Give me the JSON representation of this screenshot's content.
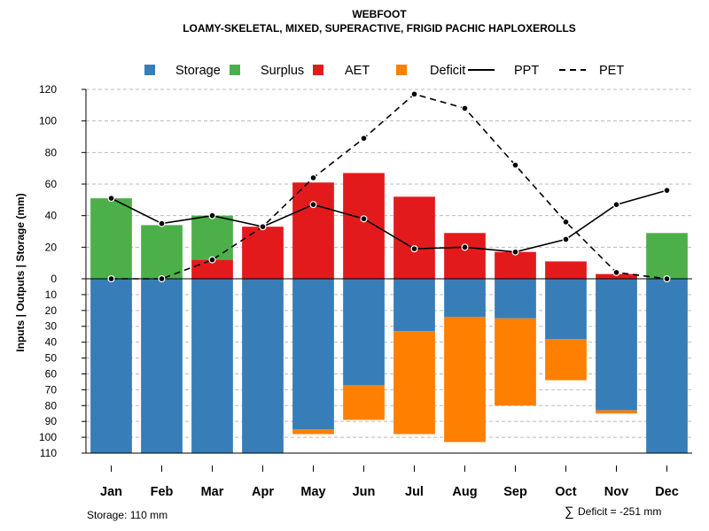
{
  "chart_data": {
    "type": "bar",
    "title": "WEBFOOT",
    "subtitle": "LOAMY-SKELETAL, MIXED, SUPERACTIVE, FRIGID PACHIC HAPLOXEROLLS",
    "ylabel": "Inputs | Outputs | Storage    (mm)",
    "categories": [
      "Jan",
      "Feb",
      "Mar",
      "Apr",
      "May",
      "Jun",
      "Jul",
      "Aug",
      "Sep",
      "Oct",
      "Nov",
      "Dec"
    ],
    "upper_ylim": [
      0,
      120
    ],
    "upper_ticks": [
      0,
      20,
      40,
      60,
      80,
      100,
      120
    ],
    "lower_ylim": [
      0,
      110
    ],
    "lower_ticks": [
      0,
      10,
      20,
      30,
      40,
      50,
      60,
      70,
      80,
      90,
      100,
      110
    ],
    "upper_series": [
      {
        "name": "AET",
        "color": "#E31A1C",
        "values": [
          0,
          0,
          12,
          33,
          61,
          67,
          52,
          29,
          17,
          11,
          3,
          0
        ]
      },
      {
        "name": "Surplus",
        "color": "#4DAF4A",
        "values": [
          51,
          34,
          28,
          0,
          0,
          0,
          0,
          0,
          0,
          0,
          0,
          29
        ]
      }
    ],
    "lower_series": [
      {
        "name": "Storage",
        "color": "#377EB8",
        "values": [
          110,
          110,
          110,
          110,
          95,
          67,
          33,
          24,
          25,
          38,
          83,
          110
        ]
      },
      {
        "name": "Deficit",
        "color": "#FF7F00",
        "values": [
          0,
          0,
          0,
          0,
          3,
          22,
          65,
          79,
          55,
          26,
          2,
          0
        ]
      }
    ],
    "lines": [
      {
        "name": "PPT",
        "style": "solid",
        "values": [
          51,
          35,
          40,
          33,
          47,
          38,
          19,
          20,
          17,
          25,
          47,
          56
        ]
      },
      {
        "name": "PET",
        "style": "dashed",
        "values": [
          0,
          0,
          12,
          33,
          64,
          89,
          117,
          108,
          72,
          36,
          4,
          0
        ]
      }
    ],
    "legend": [
      {
        "label": "Storage",
        "kind": "box",
        "color": "#377EB8"
      },
      {
        "label": "Surplus",
        "kind": "box",
        "color": "#4DAF4A"
      },
      {
        "label": "AET",
        "kind": "box",
        "color": "#E31A1C"
      },
      {
        "label": "Deficit",
        "kind": "box",
        "color": "#FF7F00"
      },
      {
        "label": "PPT",
        "kind": "line-solid",
        "color": "#000000"
      },
      {
        "label": "PET",
        "kind": "line-dashed",
        "color": "#000000"
      }
    ],
    "legend_position": "top",
    "grid": true,
    "storage_note": "Storage: 110 mm",
    "deficit_note": "Deficit = -251 mm",
    "deficit_symbol": "∑"
  }
}
